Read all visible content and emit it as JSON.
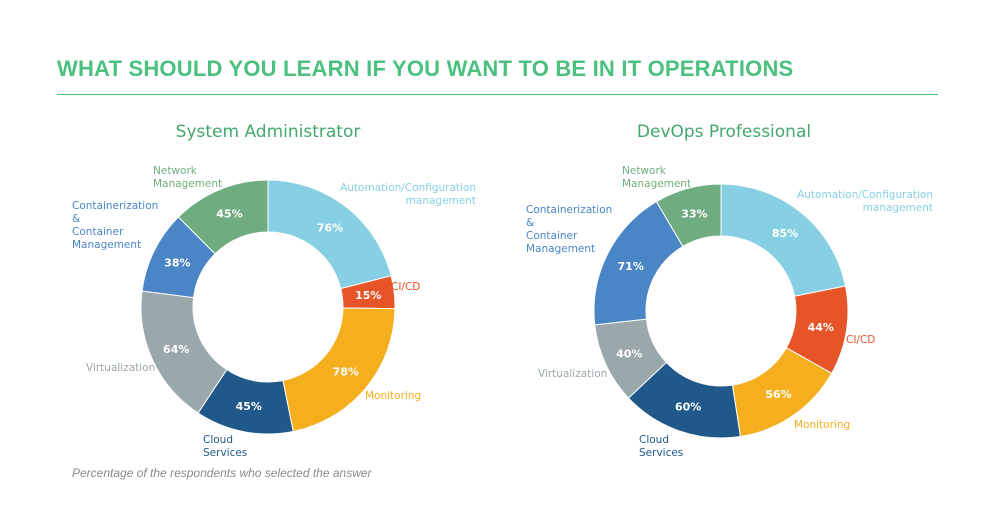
{
  "header": {
    "title": "WHAT SHOULD YOU LEARN IF YOU WANT TO BE IN IT OPERATIONS"
  },
  "colors": {
    "title": "#4cc07e",
    "rule": "#4cc07e",
    "chart_title": "#44a86d",
    "value_text": "#ffffff"
  },
  "footnote": "Percentage of the respondents who selected the answer",
  "chart_data": [
    {
      "type": "pie",
      "title": "System Administrator",
      "slices": [
        {
          "label": "Automation/Configuration\nmanagement",
          "value": 76,
          "display": "76%",
          "color": "#87cfe3"
        },
        {
          "label": "CI/CD",
          "value": 15,
          "display": "15%",
          "color": "#e65427"
        },
        {
          "label": "Monitoring",
          "value": 78,
          "display": "78%",
          "color": "#f4ae1e"
        },
        {
          "label": "Cloud\nServices",
          "value": 45,
          "display": "45%",
          "color": "#1f5889"
        },
        {
          "label": "Virtualization",
          "value": 64,
          "display": "64%",
          "color": "#9aa7ab"
        },
        {
          "label": "Containerization\n&\nContainer\nManagement",
          "value": 38,
          "display": "38%",
          "color": "#4a85c6"
        },
        {
          "label": "Network\nManagement",
          "value": 45,
          "display": "45%",
          "color": "#6fad80"
        }
      ]
    },
    {
      "type": "pie",
      "title": "DevOps Professional",
      "slices": [
        {
          "label": "Automation/Configuration\nmanagement",
          "value": 85,
          "display": "85%",
          "color": "#87cfe3"
        },
        {
          "label": "CI/CD",
          "value": 44,
          "display": "44%",
          "color": "#e65427"
        },
        {
          "label": "Monitoring",
          "value": 56,
          "display": "56%",
          "color": "#f4ae1e"
        },
        {
          "label": "Cloud\nServices",
          "value": 60,
          "display": "60%",
          "color": "#1f5889"
        },
        {
          "label": "Virtualization",
          "value": 40,
          "display": "40%",
          "color": "#9aa7ab"
        },
        {
          "label": "Containerization\n&\nContainer\nManagement",
          "value": 71,
          "display": "71%",
          "color": "#4a85c6"
        },
        {
          "label": "Network\nManagement",
          "value": 33,
          "display": "33%",
          "color": "#6fad80"
        }
      ]
    }
  ]
}
